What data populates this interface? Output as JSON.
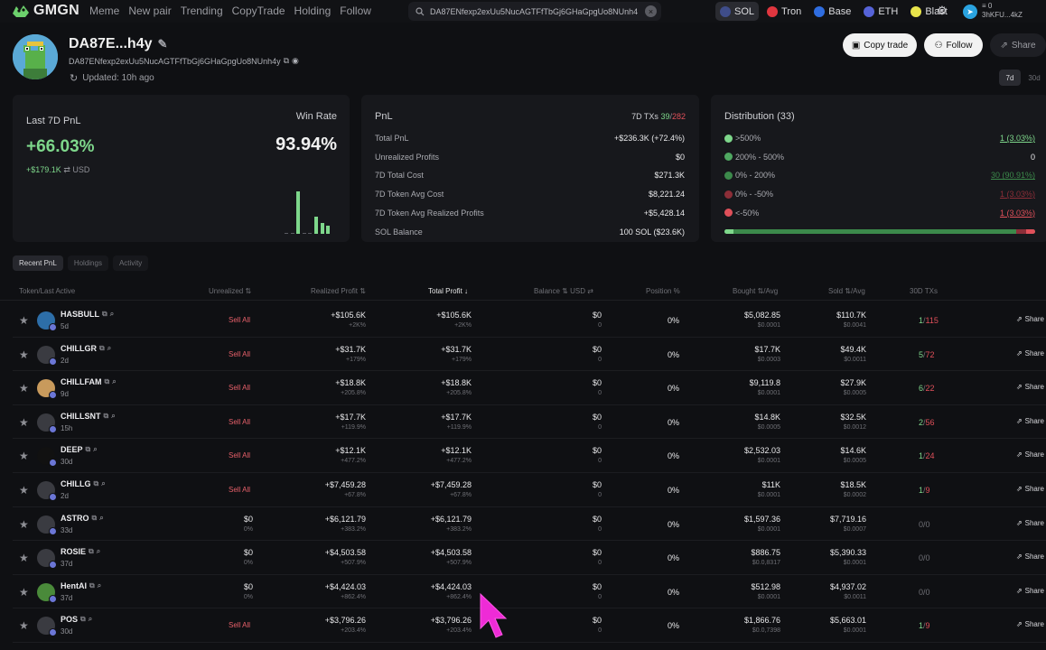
{
  "brand": {
    "name": "GMGN"
  },
  "nav": [
    "Meme",
    "New pair",
    "Trending",
    "CopyTrade",
    "Holding",
    "Follow"
  ],
  "search": {
    "value": "DA87ENfexp2exUu5NucAGTFfTbGj6GHaGpgUo8NUnh4"
  },
  "chains": [
    {
      "label": "SOL",
      "color": "#3f4d8a",
      "active": true
    },
    {
      "label": "Tron",
      "color": "#e0363f",
      "active": false
    },
    {
      "label": "Base",
      "color": "#2f6de0",
      "active": false
    },
    {
      "label": "ETH",
      "color": "#5663d8",
      "active": false
    },
    {
      "label": "Blast",
      "color": "#e8e44b",
      "active": false
    }
  ],
  "wallet": {
    "balance": "0",
    "address": "3hKFU...4kZ"
  },
  "profile": {
    "name": "DA87E...h4y",
    "address": "DA87ENfexp2exUu5NucAGTFfTbGj6GHaGpgUo8NUnh4y",
    "updated": "Updated: 10h ago"
  },
  "actions": {
    "copy": "Copy trade",
    "follow": "Follow",
    "share": "Share"
  },
  "periods": [
    "7d",
    "30d"
  ],
  "pnl_card": {
    "label": "Last 7D PnL",
    "pct": "+66.03%",
    "usd": "+$179.1K",
    "usd_unit": "USD",
    "win_label": "Win Rate",
    "win_rate": "93.94%",
    "bars": [
      0.02,
      0,
      0.87,
      0.02,
      0.02,
      0.35,
      0.22,
      0.17
    ]
  },
  "stats_card": {
    "title": "PnL",
    "txs_label": "7D TXs",
    "txs_win": "39",
    "txs_total": "282",
    "rows": [
      {
        "label": "Total PnL",
        "value": "+$236.3K (+72.4%)",
        "tone": "green"
      },
      {
        "label": "Unrealized Profits",
        "value": "$0",
        "tone": "red"
      },
      {
        "label": "7D Total Cost",
        "value": "$271.3K",
        "tone": "white"
      },
      {
        "label": "7D Token Avg Cost",
        "value": "$8,221.24",
        "tone": "white"
      },
      {
        "label": "7D Token Avg Realized Profits",
        "value": "+$5,428.14",
        "tone": "green"
      },
      {
        "label": "SOL Balance",
        "value": "100 SOL ($23.6K)",
        "tone": "white"
      }
    ]
  },
  "dist_card": {
    "title": "Distribution (33)",
    "rows": [
      {
        "label": ">500%",
        "value": "1 (3.03%)",
        "color": "#7ed78b",
        "tone": "green",
        "underline": true
      },
      {
        "label": "200% - 500%",
        "value": "0",
        "color": "#4fa861",
        "tone": "white",
        "underline": false
      },
      {
        "label": "0% - 200%",
        "value": "30 (90.91%)",
        "color": "#3c8a4b",
        "tone": "darkgreen",
        "underline": true
      },
      {
        "label": "0% - -50%",
        "value": "1 (3.03%)",
        "color": "#8c2e38",
        "tone": "darkred",
        "underline": true
      },
      {
        "label": "<-50%",
        "value": "1 (3.03%)",
        "color": "#e0505a",
        "tone": "red",
        "underline": true
      }
    ],
    "bar": [
      0.0303,
      0.0,
      0.9091,
      0.0303,
      0.0303
    ]
  },
  "tabs": [
    "Recent PnL",
    "Holdings",
    "Activity"
  ],
  "columns": {
    "token": "Token/Last Active",
    "unrealized": "Unrealized",
    "realized": "Realized Profit",
    "total": "Total Profit",
    "balance": "Balance",
    "usd": "USD",
    "position": "Position %",
    "bought": "Bought",
    "avg1": "/Avg",
    "sold": "Sold",
    "avg2": "/Avg",
    "txs": "30D TXs"
  },
  "rows": [
    {
      "name": "HASBULL",
      "age": "5d",
      "unreal": "Sell All",
      "unreal_sub": "",
      "realized": "+$105.6K",
      "realized_pct": "+2K%",
      "total": "+$105.6K",
      "total_pct": "+2K%",
      "balance": "$0",
      "balance_sub": "0",
      "position": "0%",
      "bought": "$5,082.85",
      "bought_avg": "$0.0001",
      "sold": "$110.7K",
      "sold_avg": "$0.0041",
      "tx_buy": "1",
      "tx_sell": "115",
      "share": "Share",
      "av": "#2d6ea8"
    },
    {
      "name": "CHILLGR",
      "age": "2d",
      "unreal": "Sell All",
      "unreal_sub": "",
      "realized": "+$31.7K",
      "realized_pct": "+179%",
      "total": "+$31.7K",
      "total_pct": "+179%",
      "balance": "$0",
      "balance_sub": "0",
      "position": "0%",
      "bought": "$17.7K",
      "bought_avg": "$0.0003",
      "sold": "$49.4K",
      "sold_avg": "$0.0011",
      "tx_buy": "5",
      "tx_sell": "72",
      "share": "Share",
      "av": "#3a3b41"
    },
    {
      "name": "CHILLFAM",
      "age": "9d",
      "unreal": "Sell All",
      "unreal_sub": "",
      "realized": "+$18.8K",
      "realized_pct": "+205.8%",
      "total": "+$18.8K",
      "total_pct": "+205.8%",
      "balance": "$0",
      "balance_sub": "0",
      "position": "0%",
      "bought": "$9,119.8",
      "bought_avg": "$0.0001",
      "sold": "$27.9K",
      "sold_avg": "$0.0005",
      "tx_buy": "6",
      "tx_sell": "22",
      "share": "Share",
      "av": "#c89a5c"
    },
    {
      "name": "CHILLSNT",
      "age": "15h",
      "unreal": "Sell All",
      "unreal_sub": "",
      "realized": "+$17.7K",
      "realized_pct": "+119.9%",
      "total": "+$17.7K",
      "total_pct": "+119.9%",
      "balance": "$0",
      "balance_sub": "0",
      "position": "0%",
      "bought": "$14.8K",
      "bought_avg": "$0.0005",
      "sold": "$32.5K",
      "sold_avg": "$0.0012",
      "tx_buy": "2",
      "tx_sell": "56",
      "share": "Share",
      "av": "#3a3b41"
    },
    {
      "name": "DEEP",
      "age": "30d",
      "unreal": "Sell All",
      "unreal_sub": "",
      "realized": "+$12.1K",
      "realized_pct": "+477.2%",
      "total": "+$12.1K",
      "total_pct": "+477.2%",
      "balance": "$0",
      "balance_sub": "0",
      "position": "0%",
      "bought": "$2,532.03",
      "bought_avg": "$0.0001",
      "sold": "$14.6K",
      "sold_avg": "$0.0005",
      "tx_buy": "1",
      "tx_sell": "24",
      "share": "Share",
      "av": "#111111"
    },
    {
      "name": "CHILLG",
      "age": "2d",
      "unreal": "Sell All",
      "unreal_sub": "",
      "realized": "+$7,459.28",
      "realized_pct": "+67.8%",
      "total": "+$7,459.28",
      "total_pct": "+67.8%",
      "balance": "$0",
      "balance_sub": "0",
      "position": "0%",
      "bought": "$11K",
      "bought_avg": "$0.0001",
      "sold": "$18.5K",
      "sold_avg": "$0.0002",
      "tx_buy": "1",
      "tx_sell": "9",
      "share": "Share",
      "av": "#3a3b41"
    },
    {
      "name": "ASTRO",
      "age": "33d",
      "unreal": "$0",
      "unreal_sub": "0%",
      "realized": "+$6,121.79",
      "realized_pct": "+383.2%",
      "total": "+$6,121.79",
      "total_pct": "+383.2%",
      "balance": "$0",
      "balance_sub": "0",
      "position": "0%",
      "bought": "$1,597.36",
      "bought_avg": "$0.0001",
      "sold": "$7,719.16",
      "sold_avg": "$0.0007",
      "tx_buy": "0",
      "tx_sell": "0",
      "share": "Share",
      "av": "#3a3b41"
    },
    {
      "name": "ROSIE",
      "age": "37d",
      "unreal": "$0",
      "unreal_sub": "0%",
      "realized": "+$4,503.58",
      "realized_pct": "+507.9%",
      "total": "+$4,503.58",
      "total_pct": "+507.9%",
      "balance": "$0",
      "balance_sub": "0",
      "position": "0%",
      "bought": "$886.75",
      "bought_avg": "$0.0,8317",
      "sold": "$5,390.33",
      "sold_avg": "$0.0001",
      "tx_buy": "0",
      "tx_sell": "0",
      "share": "Share",
      "av": "#3a3b41"
    },
    {
      "name": "HentAI",
      "age": "37d",
      "unreal": "$0",
      "unreal_sub": "0%",
      "realized": "+$4,424.03",
      "realized_pct": "+862.4%",
      "total": "+$4,424.03",
      "total_pct": "+862.4%",
      "balance": "$0",
      "balance_sub": "0",
      "position": "0%",
      "bought": "$512.98",
      "bought_avg": "$0.0001",
      "sold": "$4,937.02",
      "sold_avg": "$0.0011",
      "tx_buy": "0",
      "tx_sell": "0",
      "share": "Share",
      "av": "#4a8a3a"
    },
    {
      "name": "POS",
      "age": "30d",
      "unreal": "Sell All",
      "unreal_sub": "",
      "realized": "+$3,796.26",
      "realized_pct": "+203.4%",
      "total": "+$3,796.26",
      "total_pct": "+203.4%",
      "balance": "$0",
      "balance_sub": "0",
      "position": "0%",
      "bought": "$1,866.76",
      "bought_avg": "$0.0,7398",
      "sold": "$5,663.01",
      "sold_avg": "$0.0001",
      "tx_buy": "1",
      "tx_sell": "9",
      "share": "Share",
      "av": "#3a3b41"
    }
  ]
}
